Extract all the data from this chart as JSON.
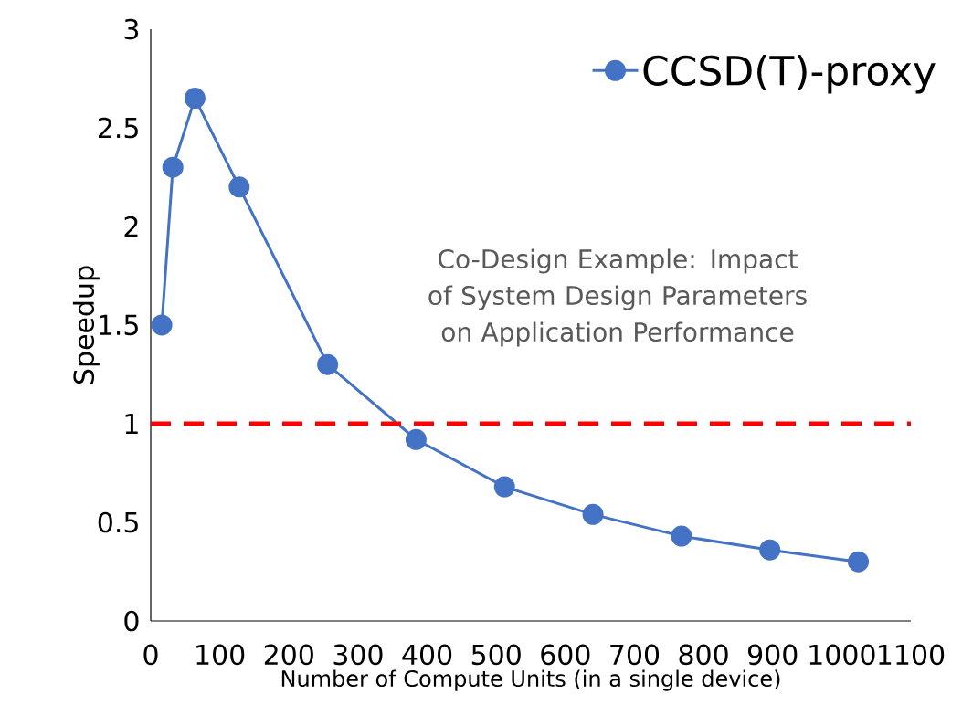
{
  "chart_data": {
    "type": "line",
    "xlabel": "Number of Compute Units (in a single device)",
    "ylabel": "Speedup",
    "x": [
      16,
      32,
      64,
      128,
      256,
      384,
      512,
      640,
      768,
      896,
      1024
    ],
    "series": [
      {
        "name": "CCSD(T)-proxy",
        "color": "#4472c4",
        "values": [
          1.5,
          2.3,
          2.65,
          2.2,
          1.3,
          0.92,
          0.68,
          0.54,
          0.43,
          0.36,
          0.3
        ]
      }
    ],
    "xlim": [
      0,
      1100
    ],
    "xticks": [
      0,
      100,
      200,
      300,
      400,
      500,
      600,
      700,
      800,
      900,
      1000,
      1100
    ],
    "ylim": [
      0,
      3
    ],
    "yticks": [
      0,
      0.5,
      1,
      1.5,
      2,
      2.5,
      3
    ],
    "ref_lines": [
      {
        "axis": "y",
        "value": 1,
        "color": "#ff0000",
        "line_style": "dashed"
      }
    ],
    "annotations": [
      "Co-Design Example: Impact of System Design Parameters on Application Performance"
    ],
    "marker": "circle",
    "line_style": "solid",
    "grid": false,
    "legend": "top right"
  }
}
